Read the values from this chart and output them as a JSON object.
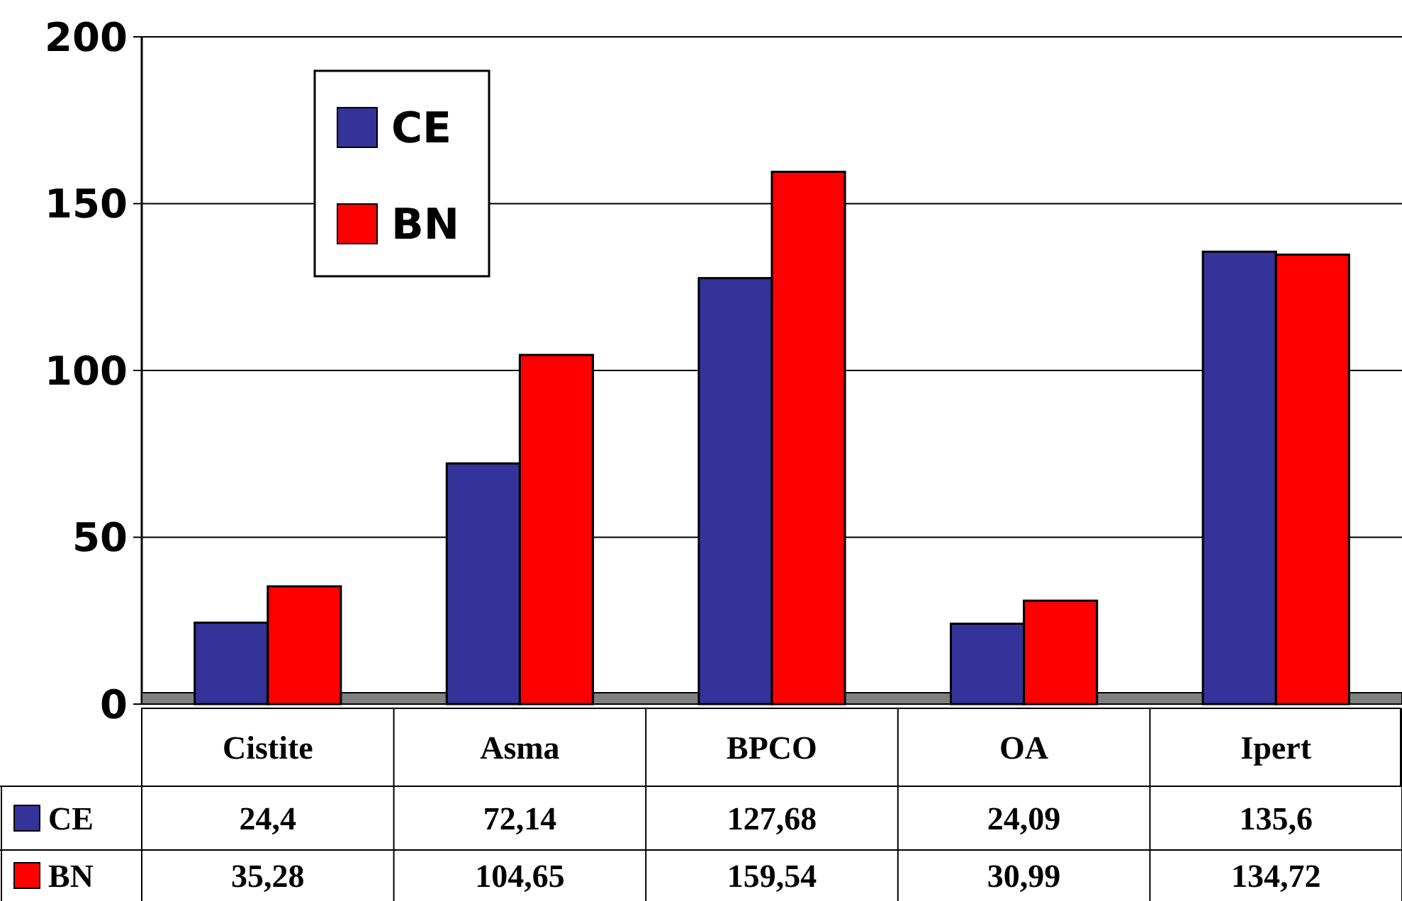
{
  "chart_data": {
    "type": "bar",
    "categories": [
      "Cistite",
      "Asma",
      "BPCO",
      "OA",
      "Ipert"
    ],
    "series": [
      {
        "name": "CE",
        "color": "#333399",
        "values": [
          24.4,
          72.14,
          127.68,
          24.09,
          135.6
        ],
        "value_labels": [
          "24,4",
          "72,14",
          "127,68",
          "24,09",
          "135,6"
        ]
      },
      {
        "name": "BN",
        "color": "#ff0000",
        "values": [
          35.28,
          104.65,
          159.54,
          30.99,
          134.72
        ],
        "value_labels": [
          "35,28",
          "104,65",
          "159,54",
          "30,99",
          "134,72"
        ]
      }
    ],
    "ylim": [
      0,
      200
    ],
    "yticks": [
      0,
      50,
      100,
      150,
      200
    ],
    "grid": "y",
    "legend": "top left"
  }
}
